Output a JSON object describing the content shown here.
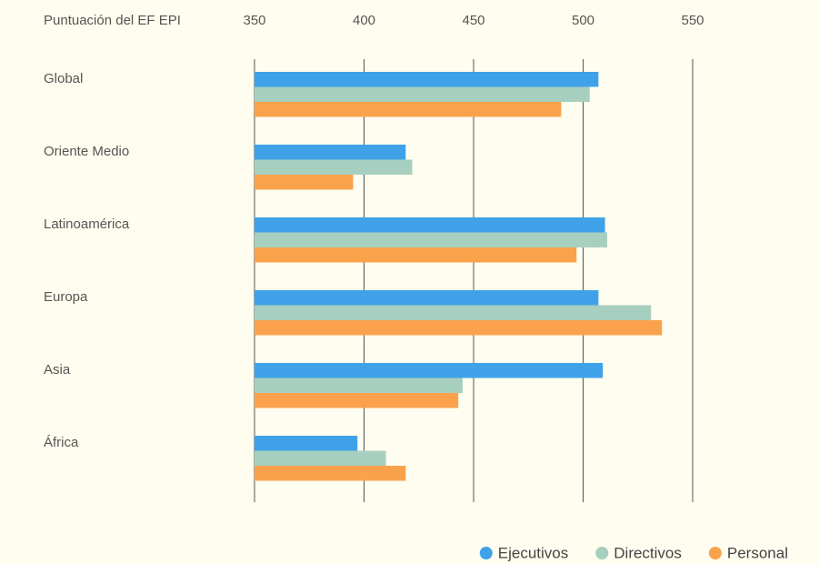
{
  "chart_data": {
    "type": "hbar",
    "axis_label": "Puntuación del EF EPI",
    "categories": [
      "Global",
      "Oriente Medio",
      "Latinoamérica",
      "Europa",
      "Asia",
      "África"
    ],
    "series": [
      {
        "name": "Ejecutivos",
        "color": "#3fa2e9",
        "values": [
          507,
          419,
          510,
          507,
          509,
          397
        ]
      },
      {
        "name": "Directivos",
        "color": "#a7cfbf",
        "values": [
          503,
          422,
          511,
          531,
          445,
          410
        ]
      },
      {
        "name": "Personal",
        "color": "#f9a24b",
        "values": [
          490,
          395,
          497,
          536,
          443,
          419
        ]
      }
    ],
    "xlim": [
      350,
      550
    ],
    "xticks": [
      350,
      400,
      450,
      500,
      550
    ],
    "grid": true,
    "legend": "bottom-right"
  }
}
